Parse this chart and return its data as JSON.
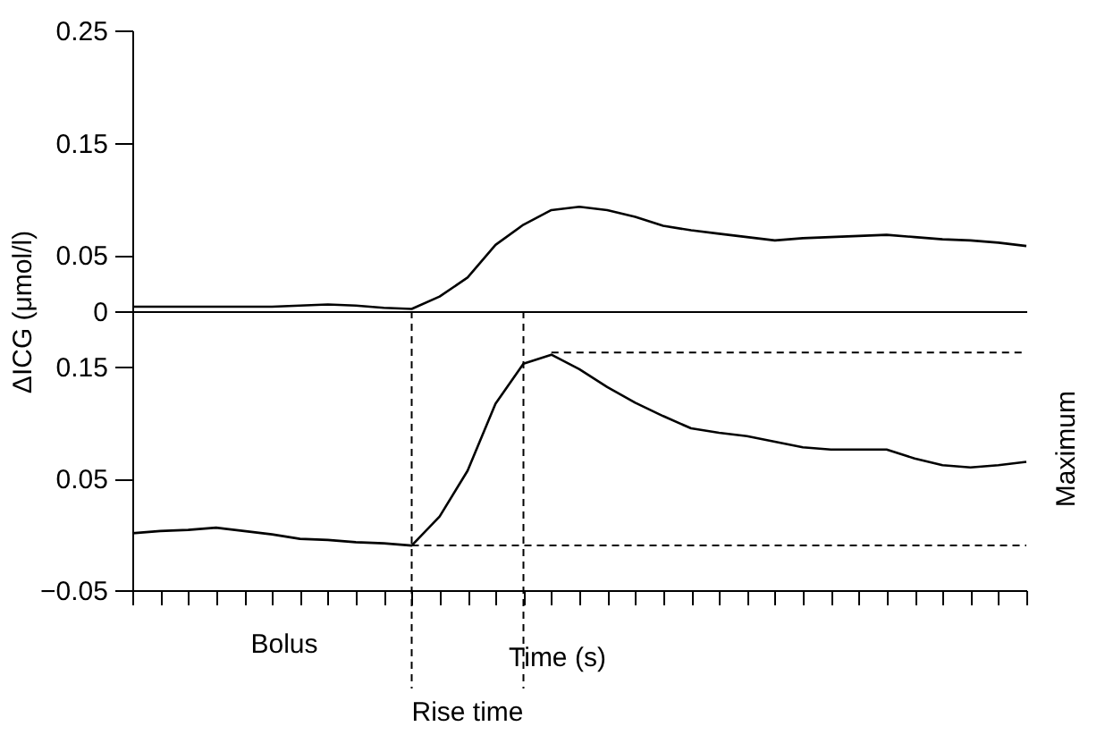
{
  "chart_data": [
    {
      "type": "line",
      "ylabel": "ΔICG (μmol/l)",
      "ylim": [
        0,
        0.25
      ],
      "yticks": [
        0,
        0.05,
        0.15,
        0.25
      ],
      "tick_labels": "y",
      "categories": [
        null,
        null,
        null,
        null,
        null,
        null,
        null,
        null,
        null,
        null,
        null,
        null,
        null,
        null,
        null,
        null,
        null,
        null,
        null,
        null,
        null,
        null,
        null,
        null,
        null,
        null,
        null,
        null,
        null,
        null,
        null,
        null,
        null
      ],
      "series": [
        {
          "color": "#000000",
          "values": [
            0.004,
            0.004,
            0.004,
            0.004,
            0.004,
            0.004,
            0.005,
            0.006,
            0.005,
            0.003,
            0.002,
            0.013,
            0.03,
            0.059,
            0.077,
            0.09,
            0.093,
            0.09,
            0.084,
            0.076,
            0.072,
            0.069,
            0.066,
            0.063,
            0.065,
            0.066,
            0.067,
            0.068,
            0.066,
            0.064,
            0.063,
            0.061,
            0.058
          ]
        }
      ]
    },
    {
      "type": "line",
      "xlabel": "Time (s)",
      "ylim": [
        -0.05,
        0.2
      ],
      "yticks": [
        -0.05,
        0.05,
        0.15
      ],
      "tick_labels": "y",
      "categories": [
        null,
        null,
        null,
        null,
        null,
        null,
        null,
        null,
        null,
        null,
        null,
        null,
        null,
        null,
        null,
        null,
        null,
        null,
        null,
        null,
        null,
        null,
        null,
        null,
        null,
        null,
        null,
        null,
        null,
        null,
        null,
        null,
        null
      ],
      "series": [
        {
          "color": "#000000",
          "values": [
            0.001,
            0.003,
            0.004,
            0.006,
            0.003,
            0.0,
            -0.004,
            -0.005,
            -0.007,
            -0.008,
            -0.01,
            0.016,
            0.057,
            0.117,
            0.153,
            0.161,
            0.148,
            0.132,
            0.118,
            0.106,
            0.095,
            0.091,
            0.088,
            0.083,
            0.078,
            0.076,
            0.076,
            0.076,
            0.068,
            0.062,
            0.06,
            0.062,
            0.065
          ]
        }
      ],
      "ref_lines": [
        {
          "axis": "y",
          "value": 0.163,
          "line_style": "dashed",
          "color": "#000000"
        },
        {
          "axis": "y",
          "value": -0.01,
          "line_style": "dashed",
          "color": "#000000"
        }
      ],
      "annotations": [
        "Bolus",
        "Rise time",
        "Maximum"
      ]
    }
  ]
}
